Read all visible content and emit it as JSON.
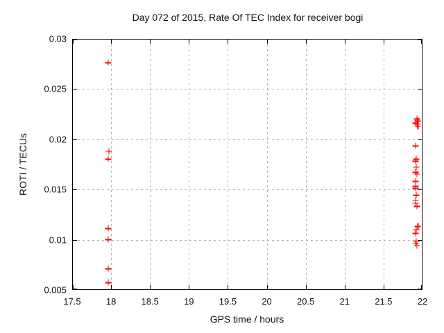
{
  "window": {
    "background": "#ffffff"
  },
  "chart_data": {
    "type": "scatter",
    "title": "Day 072 of 2015, Rate Of TEC Index for receiver bogi",
    "xlabel": "GPS time / hours",
    "ylabel": "ROTI / TECUs",
    "xlim": [
      17.5,
      22
    ],
    "ylim": [
      0.005,
      0.03
    ],
    "xticks": [
      17.5,
      18,
      18.5,
      19,
      19.5,
      20,
      20.5,
      21,
      21.5,
      22
    ],
    "xtick_labels": [
      "17.5",
      "18",
      "18.5",
      "19",
      "19.5",
      "20",
      "20.5",
      "21",
      "21.5",
      "22"
    ],
    "yticks": [
      0.005,
      0.01,
      0.015,
      0.02,
      0.025,
      0.03
    ],
    "ytick_labels": [
      "0.005",
      "0.01",
      "0.015",
      "0.02",
      "0.025",
      "0.03"
    ],
    "grid": true,
    "legend_position": "none",
    "marker": "plus",
    "marker_color": "#ff0000",
    "grid_color": "#b0b0b0",
    "axis_color": "#000000",
    "series": [
      {
        "name": "ROTI",
        "color": "#ff0000",
        "points": [
          [
            17.95,
            0.0277
          ],
          [
            17.96,
            0.0189
          ],
          [
            17.95,
            0.0181
          ],
          [
            17.95,
            0.0112
          ],
          [
            17.95,
            0.0101
          ],
          [
            17.95,
            0.0072
          ],
          [
            17.95,
            0.0058
          ],
          [
            21.92,
            0.0221
          ],
          [
            21.93,
            0.0219
          ],
          [
            21.9,
            0.0217
          ],
          [
            21.92,
            0.0216
          ],
          [
            21.93,
            0.0214
          ],
          [
            21.9,
            0.0194
          ],
          [
            21.91,
            0.0181
          ],
          [
            21.9,
            0.0179
          ],
          [
            21.91,
            0.0173
          ],
          [
            21.9,
            0.0168
          ],
          [
            21.92,
            0.0166
          ],
          [
            21.9,
            0.0159
          ],
          [
            21.9,
            0.0154
          ],
          [
            21.9,
            0.0152
          ],
          [
            21.91,
            0.0145
          ],
          [
            21.9,
            0.014
          ],
          [
            21.9,
            0.0137
          ],
          [
            21.92,
            0.0134
          ],
          [
            21.93,
            0.0114
          ],
          [
            21.91,
            0.0111
          ],
          [
            21.9,
            0.0107
          ],
          [
            21.91,
            0.0099
          ],
          [
            21.9,
            0.0097
          ],
          [
            21.92,
            0.0095
          ]
        ]
      }
    ]
  }
}
